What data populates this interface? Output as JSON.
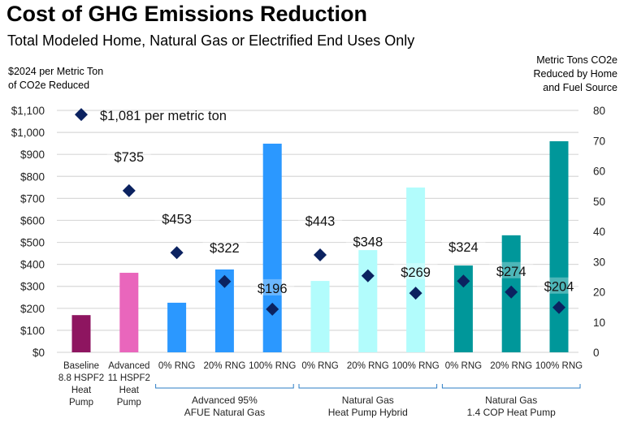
{
  "chart_data": {
    "type": "bar",
    "title": "Cost of GHG Emissions Reduction",
    "subtitle": "Total Modeled Home, Natural Gas or Electrified End Uses Only",
    "ylabel_left": "$2024 per Metric Ton of CO2e Reduced",
    "ylabel_left_lines": [
      "$2024 per Metric Ton",
      "of CO2e Reduced"
    ],
    "ylabel_right_lines": [
      "Metric Tons CO2e",
      "Reduced by Home",
      "and Fuel Source"
    ],
    "ylim_left": [
      0,
      1100
    ],
    "ylim_right": [
      0,
      80
    ],
    "left_ticks": [
      "$0",
      "$100",
      "$200",
      "$300",
      "$400",
      "$500",
      "$600",
      "$700",
      "$800",
      "$900",
      "$1,000",
      "$1,100"
    ],
    "right_ticks": [
      "0",
      "10",
      "20",
      "30",
      "40",
      "50",
      "60",
      "70",
      "80"
    ],
    "grid": true,
    "categories": [
      [
        "Baseline",
        "8.8 HSPF2",
        "Heat",
        "Pump"
      ],
      [
        "Advanced",
        "11 HSPF2",
        "Heat",
        "Pump"
      ],
      [
        "0% RNG"
      ],
      [
        "20% RNG"
      ],
      [
        "100% RNG"
      ],
      [
        "0% RNG"
      ],
      [
        "20% RNG"
      ],
      [
        "100% RNG"
      ],
      [
        "0% RNG"
      ],
      [
        "20% RNG"
      ],
      [
        "100% RNG"
      ]
    ],
    "groups": [
      {
        "label": [
          "Advanced 95%",
          "AFUE Natural Gas"
        ],
        "from": 2,
        "to": 4
      },
      {
        "label": [
          "Natural Gas",
          "Heat Pump Hybrid"
        ],
        "from": 5,
        "to": 7
      },
      {
        "label": [
          "Natural Gas",
          "1.4 COP Heat Pump"
        ],
        "from": 8,
        "to": 10
      }
    ],
    "bars": {
      "axis": "right",
      "values": [
        12.3,
        26.3,
        16.4,
        27.4,
        69,
        23.6,
        33.8,
        54.5,
        28.7,
        38.7,
        69.8
      ],
      "colors": [
        "#8E1560",
        "#E966BC",
        "#2B98FF",
        "#2B98FF",
        "#2B98FF",
        "#B2FCFC",
        "#B2FCFC",
        "#B2FCFC",
        "#00979A",
        "#00979A",
        "#00979A"
      ]
    },
    "diamonds": {
      "axis": "left",
      "color": "#0B2260",
      "values": [
        1081,
        735,
        453,
        322,
        196,
        443,
        348,
        269,
        324,
        274,
        204
      ],
      "labels": [
        "$1,081 per metric ton",
        "$735",
        "$453",
        "$322",
        "$196",
        "$443",
        "$348",
        "$269",
        "$324",
        "$274",
        "$204"
      ]
    }
  }
}
